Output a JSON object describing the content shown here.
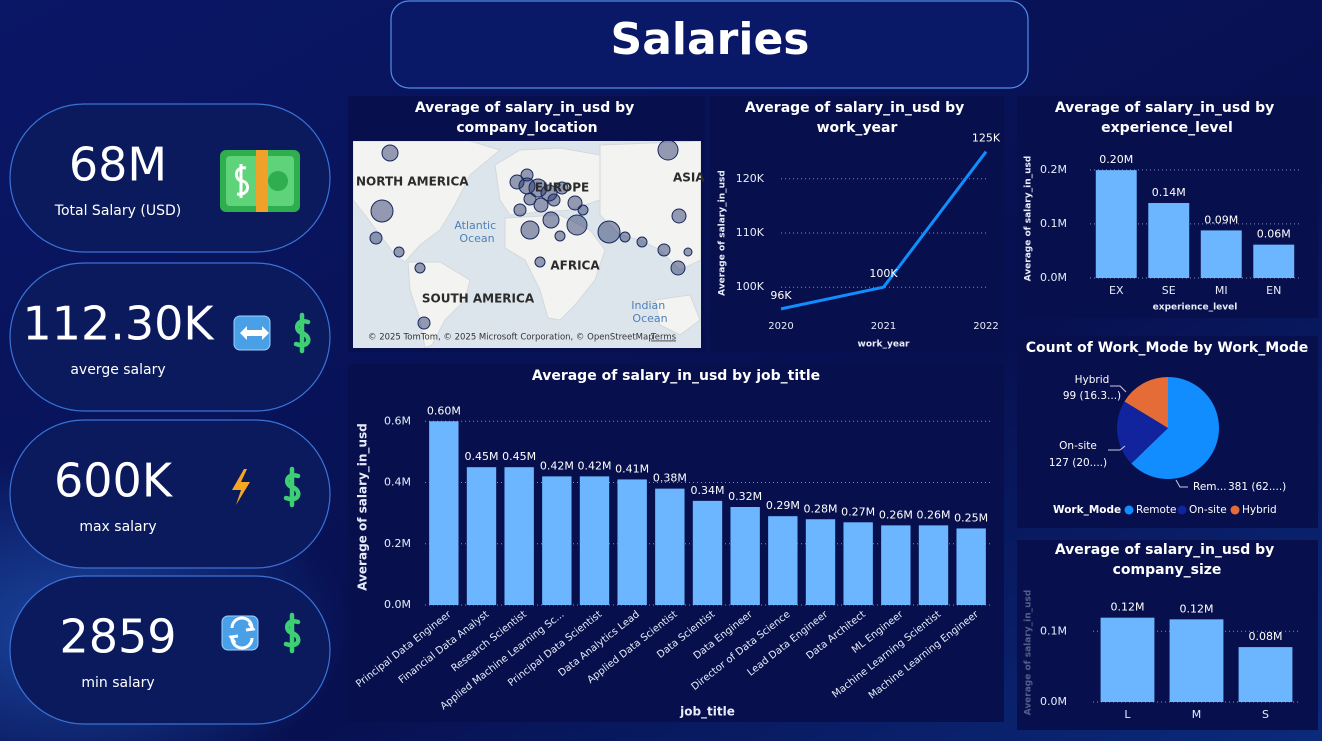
{
  "title": "Salaries",
  "cards": [
    {
      "value": "68M",
      "label": "Total Salary (USD)"
    },
    {
      "value": "112.30K",
      "label": "averge salary"
    },
    {
      "value": "600K",
      "label": "max salary"
    },
    {
      "value": "2859",
      "label": "min salary"
    }
  ],
  "map": {
    "title": "Average of salary_in_usd by company_location",
    "labels": [
      "NORTH AMERICA",
      "EUROPE",
      "ASIA",
      "Atlantic Ocean",
      "AFRICA",
      "SOUTH AMERICA",
      "Indian Ocean"
    ],
    "attribution": "© 2025 TomTom, © 2025 Microsoft Corporation, © OpenStreetMap",
    "terms": "Terms"
  },
  "chart_data": [
    {
      "type": "line",
      "title": "Average of salary_in_usd by work_year",
      "x_label": "work_year",
      "y_label": "Average of salary_in_usd",
      "x": [
        2020,
        2021,
        2022
      ],
      "values": [
        96000,
        100000,
        125000
      ],
      "value_labels": [
        "96K",
        "100K",
        "125K"
      ],
      "color": "#118dff",
      "xlim": [
        2020,
        2022
      ],
      "xticks": [
        2020,
        2021,
        2022
      ],
      "ylim": [
        94500,
        125500
      ],
      "yticks": [
        {
          "value": 100000,
          "label": "100K"
        },
        {
          "value": 110000,
          "label": "110K"
        },
        {
          "value": 120000,
          "label": "120K"
        }
      ],
      "grid": true
    },
    {
      "type": "bar",
      "title": "Average of salary_in_usd by experience_level",
      "x_label": "experience_level",
      "y_label": "Average of salary_in_usd",
      "categories": [
        "EX",
        "SE",
        "MI",
        "EN"
      ],
      "values": [
        199392,
        138617,
        87996,
        61643
      ],
      "value_labels": [
        "0.20M",
        "0.14M",
        "0.09M",
        "0.06M"
      ],
      "color": "#6cb6ff",
      "ylim": [
        0,
        220000
      ],
      "yticks": [
        {
          "value": 0,
          "label": "0.0M"
        },
        {
          "value": 100000,
          "label": "0.1M"
        },
        {
          "value": 200000,
          "label": "0.2M"
        }
      ],
      "grid": true
    },
    {
      "type": "pie",
      "title": "Count of Work_Mode by Work_Mode",
      "legend_title": "Work_Mode",
      "categories": [
        "Remote",
        "On-site",
        "Hybrid"
      ],
      "slice_labels": [
        "Rem...",
        "On-site",
        "Hybrid"
      ],
      "values": [
        381,
        127,
        99
      ],
      "value_labels": [
        "381 (62....)",
        "127 (20....)",
        "99 (16.3...)"
      ],
      "colors": [
        "#118dff",
        "#12239e",
        "#e66c37"
      ]
    },
    {
      "type": "bar",
      "title": "Average of salary_in_usd by job_title",
      "x_label": "job_title",
      "y_label": "Average of salary_in_usd",
      "categories": [
        "Principal Data Engineer",
        "Financial Data Analyst",
        "Research Scientist",
        "Applied Machine Learning Sc...",
        "Principal Data Scientist",
        "Data Analytics Lead",
        "Applied Data Scientist",
        "Data Scientist",
        "Data Engineer",
        "Director of Data Science",
        "Lead Data Engineer",
        "Data Architect",
        "ML Engineer",
        "Machine Learning Scientist",
        "Machine Learning Engineer"
      ],
      "values": [
        600000,
        450000,
        450000,
        420000,
        420000,
        410000,
        380000,
        340000,
        320000,
        290000,
        280000,
        270000,
        260000,
        260000,
        250000
      ],
      "value_labels": [
        "0.60M",
        "0.45M",
        "0.45M",
        "0.42M",
        "0.42M",
        "0.41M",
        "0.38M",
        "0.34M",
        "0.32M",
        "0.29M",
        "0.28M",
        "0.27M",
        "0.26M",
        "0.26M",
        "0.25M"
      ],
      "color": "#6cb6ff",
      "ylim": [
        0,
        640000
      ],
      "yticks": [
        {
          "value": 0,
          "label": "0.0M"
        },
        {
          "value": 200000,
          "label": "0.2M"
        },
        {
          "value": 400000,
          "label": "0.4M"
        },
        {
          "value": 600000,
          "label": "0.6M"
        }
      ],
      "grid": true
    },
    {
      "type": "bar",
      "title": "Average of salary_in_usd by company_size",
      "y_label": "Average of salary_in_usd",
      "categories": [
        "L",
        "M",
        "S"
      ],
      "values": [
        119243,
        116905,
        77632
      ],
      "value_labels": [
        "0.12M",
        "0.12M",
        "0.08M"
      ],
      "color": "#6cb6ff",
      "ylim": [
        0,
        140000
      ],
      "yticks": [
        {
          "value": 0,
          "label": "0.0M"
        },
        {
          "value": 100000,
          "label": "0.1M"
        }
      ],
      "grid": true
    }
  ]
}
